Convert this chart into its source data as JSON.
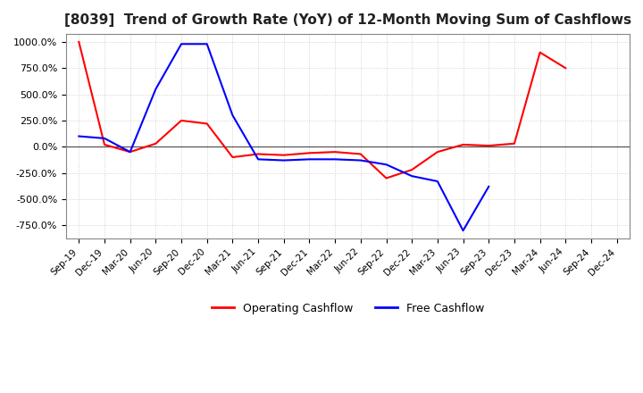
{
  "title": "[8039]  Trend of Growth Rate (YoY) of 12-Month Moving Sum of Cashflows",
  "title_fontsize": 11,
  "ylim": [
    -875,
    1075
  ],
  "yticks": [
    1000.0,
    750.0,
    500.0,
    250.0,
    0.0,
    -250.0,
    -500.0,
    -750.0
  ],
  "ytick_labels": [
    "1000.0%",
    "750.0%",
    "500.0%",
    "250.0%",
    "0.0%",
    "-250.0%",
    "-500.0%",
    "-750.0%"
  ],
  "x_labels": [
    "Sep-19",
    "Dec-19",
    "Mar-20",
    "Jun-20",
    "Sep-20",
    "Dec-20",
    "Mar-21",
    "Jun-21",
    "Sep-21",
    "Dec-21",
    "Mar-22",
    "Jun-22",
    "Sep-22",
    "Dec-22",
    "Mar-23",
    "Jun-23",
    "Sep-23",
    "Dec-23",
    "Mar-24",
    "Jun-24",
    "Sep-24",
    "Dec-24"
  ],
  "background_color": "#ffffff",
  "grid_color": "#c8c8c8",
  "legend_entries": [
    "Operating Cashflow",
    "Free Cashflow"
  ],
  "legend_colors": [
    "#ff0000",
    "#0000ff"
  ],
  "operating_cashflow": [
    1000,
    20,
    -50,
    30,
    250,
    220,
    -100,
    -70,
    -80,
    -60,
    -50,
    -70,
    -300,
    -220,
    -50,
    20,
    10,
    30,
    900,
    750,
    null,
    null
  ],
  "free_cashflow": [
    100,
    80,
    -50,
    550,
    980,
    980,
    300,
    -120,
    -130,
    -120,
    -120,
    -130,
    -170,
    -280,
    -330,
    -800,
    -380,
    null,
    null,
    null,
    null,
    null
  ]
}
